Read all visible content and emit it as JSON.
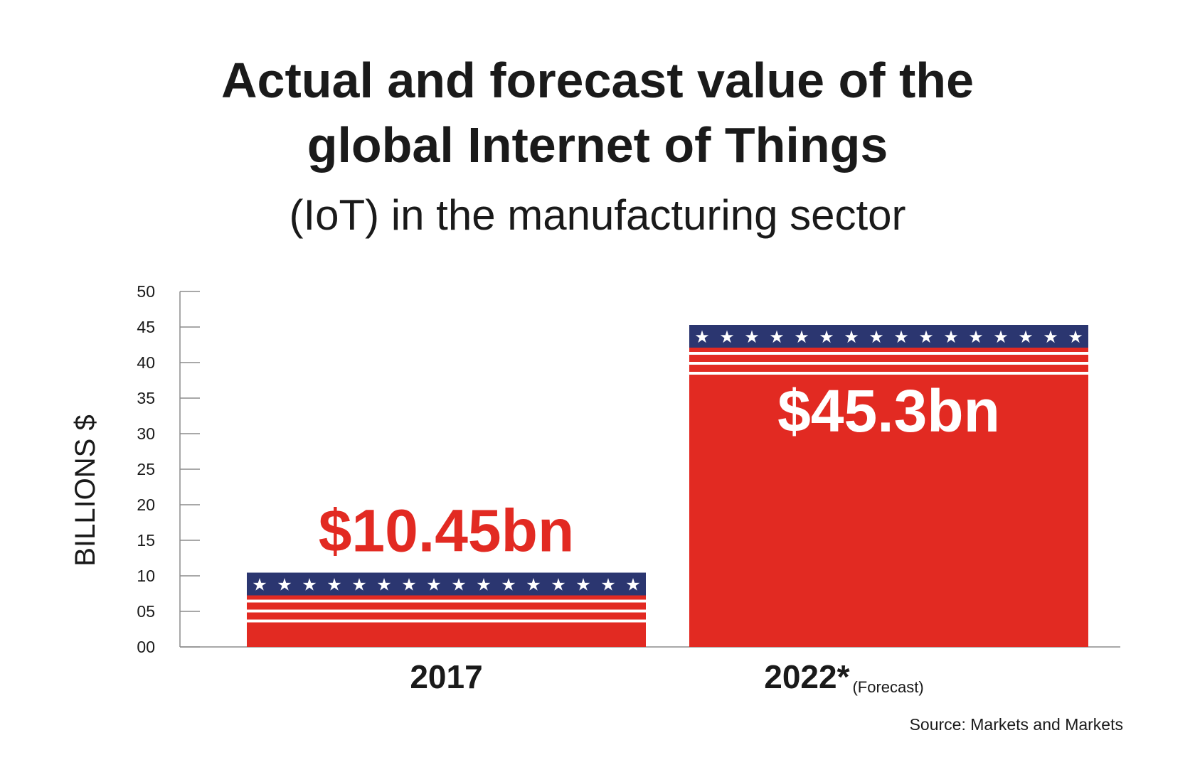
{
  "header": {
    "title_line1": "Actual and forecast value of the",
    "title_line2": "global Internet of Things",
    "subtitle": "(IoT) in the manufacturing sector"
  },
  "footer": {
    "source": "Source: Markets and Markets"
  },
  "colors": {
    "bar_red": "#e22a22",
    "star_band_navy": "#2b3670",
    "stripe_white": "#ffffff",
    "label_red": "#e22a22",
    "label_white": "#ffffff",
    "axis": "#8c8c8c"
  },
  "icons": {
    "star": "★"
  },
  "chart_data": {
    "type": "bar",
    "ylabel": "BILLIONS $",
    "ylim": [
      0,
      50
    ],
    "y_ticks": [
      "00",
      "05",
      "10",
      "15",
      "20",
      "25",
      "30",
      "35",
      "40",
      "45",
      "50"
    ],
    "categories": [
      "2017",
      "2022*"
    ],
    "category_notes": [
      "",
      "(Forecast)"
    ],
    "values": [
      10.45,
      45.3
    ],
    "data_labels": [
      "$10.45bn",
      "$45.3bn"
    ],
    "data_label_position": [
      "above",
      "inside"
    ],
    "grid": false,
    "legend": "none"
  }
}
